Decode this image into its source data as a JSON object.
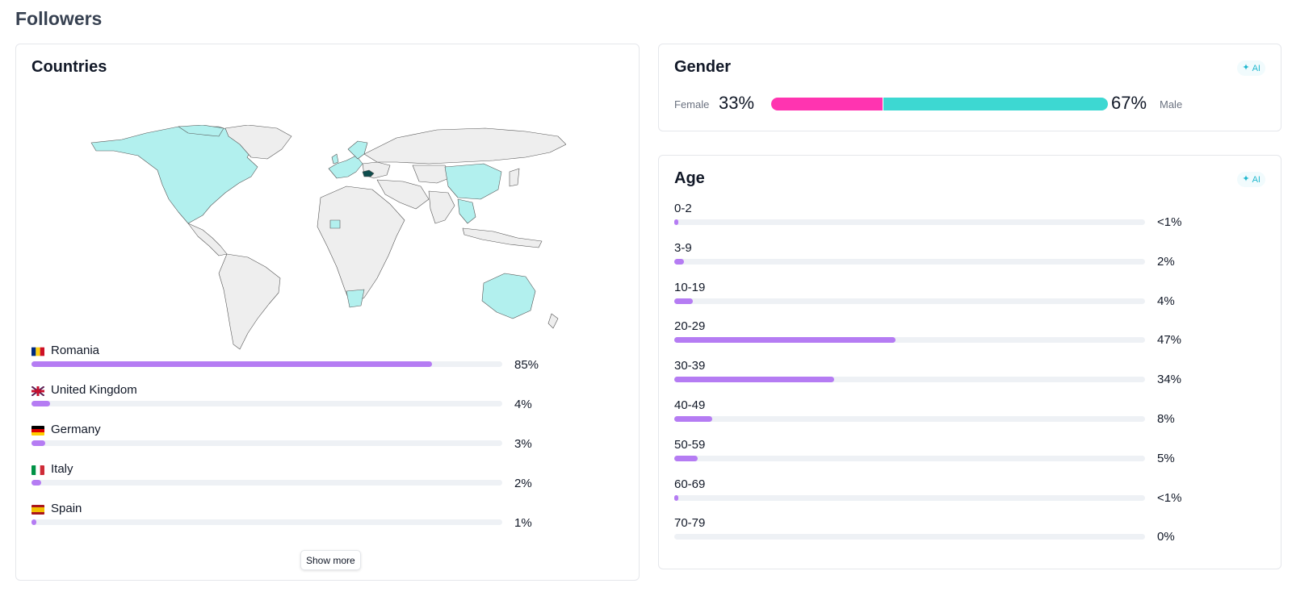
{
  "page": {
    "title": "Followers"
  },
  "countries": {
    "title": "Countries",
    "show_more_label": "Show more",
    "items": [
      {
        "name": "Romania",
        "percent_label": "85%",
        "value": 85,
        "flag": "romania-flag-icon"
      },
      {
        "name": "United Kingdom",
        "percent_label": "4%",
        "value": 4,
        "flag": "united-kingdom-flag-icon"
      },
      {
        "name": "Germany",
        "percent_label": "3%",
        "value": 3,
        "flag": "germany-flag-icon"
      },
      {
        "name": "Italy",
        "percent_label": "2%",
        "value": 2,
        "flag": "italy-flag-icon"
      },
      {
        "name": "Spain",
        "percent_label": "1%",
        "value": 1,
        "flag": "spain-flag-icon"
      }
    ]
  },
  "gender": {
    "title": "Gender",
    "ai_label": "AI",
    "female_label": "Female",
    "female_percent": "33%",
    "female_value": 33,
    "male_label": "Male",
    "male_percent": "67%",
    "male_value": 67
  },
  "age": {
    "title": "Age",
    "ai_label": "AI",
    "items": [
      {
        "range": "0-2",
        "percent_label": "<1%",
        "value": 0.5
      },
      {
        "range": "3-9",
        "percent_label": "2%",
        "value": 2
      },
      {
        "range": "10-19",
        "percent_label": "4%",
        "value": 4
      },
      {
        "range": "20-29",
        "percent_label": "47%",
        "value": 47
      },
      {
        "range": "30-39",
        "percent_label": "34%",
        "value": 34
      },
      {
        "range": "40-49",
        "percent_label": "8%",
        "value": 8
      },
      {
        "range": "50-59",
        "percent_label": "5%",
        "value": 5
      },
      {
        "range": "60-69",
        "percent_label": "<1%",
        "value": 0.5
      },
      {
        "range": "70-79",
        "percent_label": "0%",
        "value": 0
      }
    ]
  },
  "colors": {
    "bar_fill": "#b57cf3",
    "bar_track": "#eef1f5",
    "female": "#ff34b0",
    "male": "#3dd8d2",
    "map_highlight": "#b2f0ee",
    "map_land": "#eeeeee",
    "map_top_country": "#0e4d4d",
    "ai_accent": "#22b8cf"
  }
}
